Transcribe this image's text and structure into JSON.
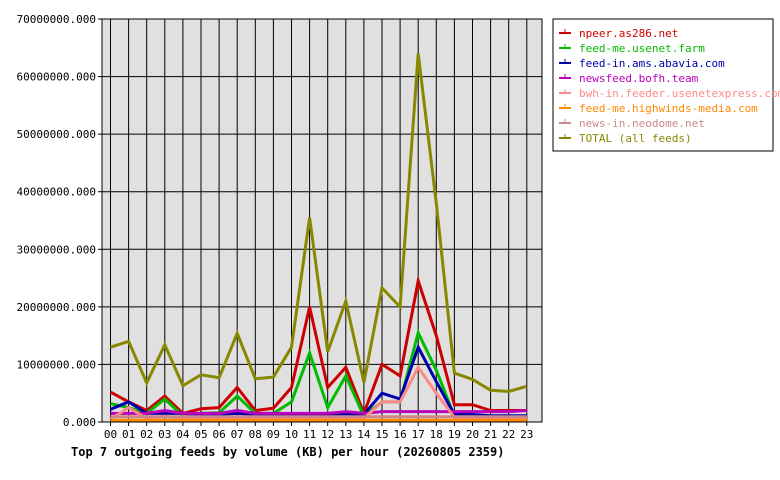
{
  "chart_data": {
    "type": "line",
    "title": "Top 7 outgoing feeds by volume (KB) per hour (20260805 2359)",
    "xlabel": "",
    "ylabel": "",
    "ylim": [
      0,
      70000000
    ],
    "y_ticks": [
      "0.000",
      "10000000.000",
      "20000000.000",
      "30000000.000",
      "40000000.000",
      "50000000.000",
      "60000000.000",
      "70000000.000"
    ],
    "categories": [
      "00",
      "01",
      "02",
      "03",
      "04",
      "05",
      "06",
      "07",
      "08",
      "09",
      "10",
      "11",
      "12",
      "13",
      "14",
      "15",
      "16",
      "17",
      "18",
      "19",
      "20",
      "21",
      "22",
      "23"
    ],
    "grid": true,
    "legend_position": "right",
    "series": [
      {
        "name": "npeer.as286.net",
        "color": "#cc0000",
        "values": [
          5200000,
          3500000,
          2000000,
          4500000,
          1500000,
          2300000,
          2500000,
          6000000,
          2000000,
          2400000,
          6000000,
          20000000,
          6000000,
          9500000,
          1500000,
          10000000,
          8000000,
          24500000,
          15000000,
          3000000,
          3000000,
          2000000,
          2000000,
          2000000
        ]
      },
      {
        "name": "feed-me.usenet.farm",
        "color": "#00bb00",
        "values": [
          3200000,
          2500000,
          1500000,
          4000000,
          1000000,
          1500000,
          1600000,
          4500000,
          1500000,
          1500000,
          3500000,
          12000000,
          2500000,
          8000000,
          1000000,
          3500000,
          3500000,
          15500000,
          9000000,
          1000000,
          1000000,
          1000000,
          1000000,
          1000000
        ]
      },
      {
        "name": "feed-in.ams.abavia.com",
        "color": "#0000aa",
        "values": [
          2200000,
          3500000,
          1500000,
          1500000,
          1500000,
          1300000,
          1300000,
          1500000,
          1300000,
          1300000,
          1300000,
          1300000,
          1300000,
          1300000,
          1300000,
          5000000,
          4000000,
          13000000,
          7000000,
          1300000,
          1300000,
          1100000,
          1100000,
          1100000
        ]
      },
      {
        "name": "newsfeed.bofh.team",
        "color": "#bb00bb",
        "values": [
          1500000,
          1500000,
          1500000,
          2000000,
          1500000,
          1500000,
          1500000,
          2000000,
          1500000,
          1500000,
          1500000,
          1500000,
          1500000,
          1800000,
          1500000,
          1800000,
          1800000,
          1800000,
          1800000,
          1800000,
          1800000,
          1800000,
          1800000,
          2000000
        ]
      },
      {
        "name": "bwh-in.feeder.usenetexpress.com",
        "color": "#ff8888",
        "values": [
          500000,
          2500000,
          600000,
          1000000,
          600000,
          600000,
          600000,
          800000,
          600000,
          600000,
          600000,
          600000,
          600000,
          600000,
          600000,
          3500000,
          3500000,
          9500000,
          5000000,
          800000,
          600000,
          600000,
          600000,
          600000
        ]
      },
      {
        "name": "feed-me.highwinds-media.com",
        "color": "#ff8800",
        "values": [
          300000,
          300000,
          300000,
          300000,
          300000,
          300000,
          300000,
          300000,
          300000,
          300000,
          300000,
          300000,
          300000,
          300000,
          300000,
          300000,
          300000,
          300000,
          300000,
          300000,
          300000,
          300000,
          300000,
          300000
        ]
      },
      {
        "name": "news-in.neodome.net",
        "color": "#cc8888",
        "values": [
          900000,
          900000,
          900000,
          900000,
          900000,
          900000,
          900000,
          900000,
          900000,
          900000,
          900000,
          900000,
          900000,
          900000,
          900000,
          900000,
          900000,
          900000,
          900000,
          900000,
          900000,
          900000,
          900000,
          900000
        ]
      },
      {
        "name": "TOTAL (all feeds)",
        "color": "#888800",
        "values": [
          13000000,
          14000000,
          6800000,
          13400000,
          6300000,
          8200000,
          7700000,
          15400000,
          7500000,
          7800000,
          13000000,
          35500000,
          12200000,
          21000000,
          6900000,
          23300000,
          20000000,
          64000000,
          38000000,
          8500000,
          7400000,
          5500000,
          5300000,
          6200000
        ]
      }
    ]
  }
}
